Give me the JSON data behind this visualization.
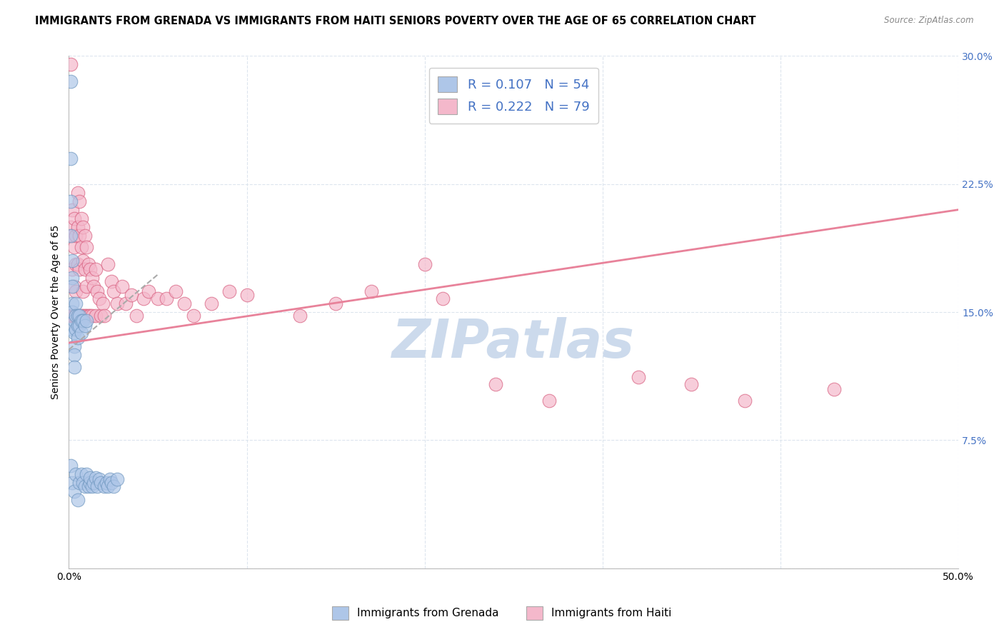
{
  "title": "IMMIGRANTS FROM GRENADA VS IMMIGRANTS FROM HAITI SENIORS POVERTY OVER THE AGE OF 65 CORRELATION CHART",
  "source": "Source: ZipAtlas.com",
  "ylabel": "Seniors Poverty Over the Age of 65",
  "xlim": [
    0.0,
    0.5
  ],
  "ylim": [
    0.0,
    0.3
  ],
  "yticks": [
    0.0,
    0.075,
    0.15,
    0.225,
    0.3
  ],
  "ytick_labels": [
    "",
    "7.5%",
    "15.0%",
    "22.5%",
    "30.0%"
  ],
  "xticks": [
    0.0,
    0.1,
    0.2,
    0.3,
    0.4,
    0.5
  ],
  "xtick_labels": [
    "0.0%",
    "",
    "",
    "",
    "",
    "50.0%"
  ],
  "grenada_R": 0.107,
  "grenada_N": 54,
  "haiti_R": 0.222,
  "haiti_N": 79,
  "grenada_color": "#aec6e8",
  "haiti_color": "#f4b8cb",
  "grenada_line_color": "#8ab0d8",
  "haiti_line_color": "#e8829a",
  "grenada_marker_edge": "#7098c0",
  "haiti_marker_edge": "#d86080",
  "watermark": "ZIPatlas",
  "watermark_color": "#ccdaec",
  "background": "#ffffff",
  "grid_color": "#dde5ee",
  "title_fontsize": 10.5,
  "axis_fontsize": 10,
  "tick_fontsize": 9,
  "grenada_x": [
    0.001,
    0.001,
    0.001,
    0.001,
    0.001,
    0.002,
    0.002,
    0.002,
    0.002,
    0.002,
    0.002,
    0.002,
    0.003,
    0.003,
    0.003,
    0.003,
    0.003,
    0.003,
    0.004,
    0.004,
    0.004,
    0.004,
    0.005,
    0.005,
    0.005,
    0.005,
    0.006,
    0.006,
    0.006,
    0.007,
    0.007,
    0.007,
    0.008,
    0.008,
    0.009,
    0.009,
    0.01,
    0.01,
    0.011,
    0.012,
    0.012,
    0.013,
    0.014,
    0.015,
    0.016,
    0.017,
    0.018,
    0.02,
    0.021,
    0.022,
    0.023,
    0.024,
    0.025,
    0.027
  ],
  "grenada_y": [
    0.285,
    0.24,
    0.215,
    0.195,
    0.06,
    0.18,
    0.17,
    0.165,
    0.155,
    0.15,
    0.14,
    0.05,
    0.145,
    0.138,
    0.13,
    0.125,
    0.118,
    0.045,
    0.155,
    0.148,
    0.14,
    0.055,
    0.148,
    0.142,
    0.135,
    0.04,
    0.148,
    0.142,
    0.05,
    0.145,
    0.138,
    0.055,
    0.145,
    0.05,
    0.142,
    0.048,
    0.145,
    0.055,
    0.048,
    0.05,
    0.053,
    0.048,
    0.05,
    0.053,
    0.048,
    0.052,
    0.05,
    0.048,
    0.05,
    0.048,
    0.052,
    0.05,
    0.048,
    0.052
  ],
  "haiti_x": [
    0.001,
    0.001,
    0.001,
    0.002,
    0.002,
    0.002,
    0.002,
    0.003,
    0.003,
    0.003,
    0.003,
    0.004,
    0.004,
    0.004,
    0.004,
    0.005,
    0.005,
    0.005,
    0.005,
    0.006,
    0.006,
    0.006,
    0.006,
    0.007,
    0.007,
    0.007,
    0.008,
    0.008,
    0.008,
    0.008,
    0.009,
    0.009,
    0.009,
    0.01,
    0.01,
    0.01,
    0.011,
    0.011,
    0.012,
    0.012,
    0.013,
    0.013,
    0.014,
    0.015,
    0.015,
    0.016,
    0.017,
    0.018,
    0.019,
    0.02,
    0.022,
    0.024,
    0.025,
    0.027,
    0.03,
    0.032,
    0.035,
    0.038,
    0.042,
    0.045,
    0.05,
    0.055,
    0.06,
    0.065,
    0.07,
    0.08,
    0.09,
    0.1,
    0.13,
    0.15,
    0.17,
    0.2,
    0.21,
    0.24,
    0.27,
    0.32,
    0.35,
    0.38,
    0.43
  ],
  "haiti_y": [
    0.295,
    0.2,
    0.148,
    0.21,
    0.195,
    0.175,
    0.148,
    0.205,
    0.188,
    0.165,
    0.148,
    0.195,
    0.178,
    0.162,
    0.148,
    0.22,
    0.2,
    0.178,
    0.148,
    0.215,
    0.195,
    0.175,
    0.148,
    0.205,
    0.188,
    0.148,
    0.2,
    0.18,
    0.162,
    0.148,
    0.195,
    0.175,
    0.148,
    0.188,
    0.165,
    0.148,
    0.178,
    0.148,
    0.175,
    0.148,
    0.17,
    0.148,
    0.165,
    0.175,
    0.148,
    0.162,
    0.158,
    0.148,
    0.155,
    0.148,
    0.178,
    0.168,
    0.162,
    0.155,
    0.165,
    0.155,
    0.16,
    0.148,
    0.158,
    0.162,
    0.158,
    0.158,
    0.162,
    0.155,
    0.148,
    0.155,
    0.162,
    0.16,
    0.148,
    0.155,
    0.162,
    0.178,
    0.158,
    0.108,
    0.098,
    0.112,
    0.108,
    0.098,
    0.105
  ],
  "grenada_trendline_x": [
    0.0,
    0.05
  ],
  "grenada_trendline_y": [
    0.128,
    0.172
  ],
  "haiti_trendline_x": [
    0.0,
    0.5
  ],
  "haiti_trendline_y": [
    0.132,
    0.21
  ]
}
